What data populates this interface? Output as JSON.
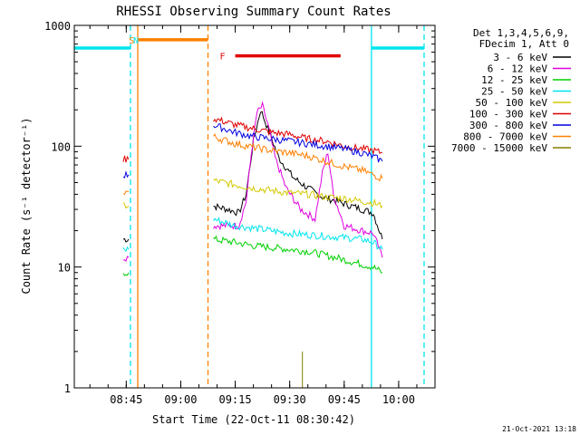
{
  "window": {
    "title": "RHESSI Observing Summary Count Rates",
    "footer_date": "21-Oct-2021 13:18"
  },
  "chart_data": {
    "type": "line",
    "title": "RHESSI Observing Summary Count Rates",
    "xlabel": "Start Time (22-Oct-11 08:30:42)",
    "ylabel": "Count Rate (s⁻¹ detector⁻¹)",
    "y_scale": "log",
    "ylim": [
      1,
      1000
    ],
    "xlim": [
      "08:30:42",
      "10:10:00"
    ],
    "x_ticks": [
      "08:45",
      "09:00",
      "09:15",
      "09:30",
      "09:45",
      "10:00"
    ],
    "y_ticks": [
      "1",
      "10",
      "100",
      "1000"
    ],
    "legend": {
      "placement": "right",
      "header": [
        "Det 1,3,4,5,6,9,",
        "FDecim 1, Att 0"
      ],
      "entries": [
        {
          "label": "3 - 6 keV",
          "color": "#000000"
        },
        {
          "label": "6 - 12 keV",
          "color": "#e000e0"
        },
        {
          "label": "12 - 25 keV",
          "color": "#00d000"
        },
        {
          "label": "25 - 50 keV",
          "color": "#00e5ee"
        },
        {
          "label": "50 - 100 keV",
          "color": "#d4c800"
        },
        {
          "label": "100 - 300 keV",
          "color": "#e00000"
        },
        {
          "label": "300 - 800 keV",
          "color": "#0000e0"
        },
        {
          "label": "800 - 7000 keV",
          "color": "#ff8000"
        },
        {
          "label": "7000 - 15000 keV",
          "color": "#808000"
        }
      ]
    },
    "annotations": [
      {
        "label": "S",
        "time": "08:46:30",
        "color": "#ff8000"
      },
      {
        "label": "N",
        "time": "08:47:40",
        "color": "#00e5ee"
      },
      {
        "label": "F",
        "time": "09:11:30",
        "color": "#e00000"
      }
    ],
    "bars": [
      {
        "name": "night",
        "color": "#00e5ee",
        "y": 650,
        "ranges": [
          [
            "08:30:42",
            "08:46:10"
          ],
          [
            "09:52:30",
            "10:07:00"
          ]
        ]
      },
      {
        "name": "saa",
        "color": "#ff8000",
        "y": 760,
        "ranges": [
          [
            "08:48:10",
            "09:07:30"
          ]
        ]
      },
      {
        "name": "flare",
        "color": "#e00000",
        "y": 560,
        "ranges": [
          [
            "09:15:00",
            "09:44:00"
          ]
        ]
      }
    ],
    "vlines": [
      {
        "time": "08:46:10",
        "color": "#00e5ee",
        "style": "dashed"
      },
      {
        "time": "08:48:10",
        "color": "#ff8000",
        "style": "solid"
      },
      {
        "time": "09:07:30",
        "color": "#ff8000",
        "style": "dashed"
      },
      {
        "time": "09:52:30",
        "color": "#00e5ee",
        "style": "solid"
      },
      {
        "time": "10:07:00",
        "color": "#00e5ee",
        "style": "dashed"
      }
    ],
    "series": [
      {
        "name": "3 - 6 keV",
        "color": "#000000",
        "segments": [
          {
            "t": [
              "08:44:10",
              "08:45:40"
            ],
            "v": [
              17,
              17
            ]
          },
          {
            "t": [
              "09:09:00",
              "09:13:00",
              "09:16:00",
              "09:18:00",
              "09:20:00",
              "09:22:00",
              "09:24:00",
              "09:27:00",
              "09:31:00",
              "09:35:00",
              "09:39:00",
              "09:43:00",
              "09:47:00",
              "09:50:00",
              "09:53:00",
              "09:55:30"
            ],
            "v": [
              32,
              30,
              28,
              40,
              110,
              200,
              140,
              80,
              55,
              45,
              38,
              35,
              32,
              30,
              28,
              17
            ]
          }
        ]
      },
      {
        "name": "6 - 12 keV",
        "color": "#e000e0",
        "segments": [
          {
            "t": [
              "08:44:10",
              "08:45:40"
            ],
            "v": [
              12,
              12
            ]
          },
          {
            "t": [
              "09:09:00",
              "09:13:00",
              "09:16:00",
              "09:18:00",
              "09:19:30",
              "09:21:00",
              "09:22:30",
              "09:24:00",
              "09:26:00",
              "09:29:00",
              "09:33:00",
              "09:37:00",
              "09:39:00",
              "09:40:30",
              "09:42:00",
              "09:45:00",
              "09:50:00",
              "09:53:00",
              "09:55:30"
            ],
            "v": [
              22,
              22,
              22,
              35,
              90,
              190,
              215,
              150,
              80,
              45,
              30,
              25,
              60,
              90,
              40,
              22,
              20,
              19,
              12
            ]
          }
        ]
      },
      {
        "name": "12 - 25 keV",
        "color": "#00d000",
        "segments": [
          {
            "t": [
              "08:44:10",
              "08:45:40"
            ],
            "v": [
              9,
              9
            ]
          },
          {
            "t": [
              "09:09:00",
              "09:15:00",
              "09:20:00",
              "09:25:00",
              "09:30:00",
              "09:35:00",
              "09:40:00",
              "09:45:00",
              "09:50:00",
              "09:53:00",
              "09:55:30"
            ],
            "v": [
              17,
              16,
              15,
              14.5,
              14,
              13.5,
              12.5,
              11.5,
              10.5,
              10,
              9
            ]
          }
        ]
      },
      {
        "name": "25 - 50 keV",
        "color": "#00e5ee",
        "segments": [
          {
            "t": [
              "08:44:10",
              "08:45:40"
            ],
            "v": [
              14,
              14
            ]
          },
          {
            "t": [
              "09:09:00",
              "09:15:00",
              "09:20:00",
              "09:25:00",
              "09:30:00",
              "09:35:00",
              "09:40:00",
              "09:45:00",
              "09:50:00",
              "09:53:00",
              "09:55:30"
            ],
            "v": [
              25,
              22,
              21,
              20,
              19,
              18.5,
              18,
              17.5,
              17,
              16,
              14
            ]
          }
        ]
      },
      {
        "name": "50 - 100 keV",
        "color": "#d4c800",
        "segments": [
          {
            "t": [
              "08:44:10",
              "08:45:40"
            ],
            "v": [
              32,
              32
            ]
          },
          {
            "t": [
              "09:09:00",
              "09:15:00",
              "09:20:00",
              "09:25:00",
              "09:30:00",
              "09:35:00",
              "09:40:00",
              "09:45:00",
              "09:50:00",
              "09:53:00",
              "09:55:30"
            ],
            "v": [
              52,
              48,
              45,
              43,
              41,
              40,
              38,
              37,
              35,
              34,
              32
            ]
          }
        ]
      },
      {
        "name": "100 - 300 keV",
        "color": "#e00000",
        "segments": [
          {
            "t": [
              "08:44:10",
              "08:45:40"
            ],
            "v": [
              78,
              78
            ]
          },
          {
            "t": [
              "09:09:00",
              "09:15:00",
              "09:20:00",
              "09:25:00",
              "09:30:00",
              "09:35:00",
              "09:40:00",
              "09:45:00",
              "09:50:00",
              "09:53:00",
              "09:55:30"
            ],
            "v": [
              170,
              150,
              140,
              130,
              125,
              115,
              110,
              100,
              95,
              92,
              88
            ]
          }
        ]
      },
      {
        "name": "300 - 800 keV",
        "color": "#0000e0",
        "segments": [
          {
            "t": [
              "08:44:10",
              "08:45:40"
            ],
            "v": [
              58,
              58
            ]
          },
          {
            "t": [
              "09:09:00",
              "09:15:00",
              "09:20:00",
              "09:25:00",
              "09:30:00",
              "09:35:00",
              "09:40:00",
              "09:45:00",
              "09:50:00",
              "09:53:00",
              "09:55:30"
            ],
            "v": [
              150,
              130,
              120,
              115,
              110,
              105,
              100,
              95,
              88,
              82,
              75
            ]
          }
        ]
      },
      {
        "name": "800 - 7000 keV",
        "color": "#ff8000",
        "segments": [
          {
            "t": [
              "08:44:10",
              "08:45:40"
            ],
            "v": [
              42,
              42
            ]
          },
          {
            "t": [
              "09:09:00",
              "09:15:00",
              "09:20:00",
              "09:25:00",
              "09:30:00",
              "09:35:00",
              "09:40:00",
              "09:45:00",
              "09:50:00",
              "09:53:00",
              "09:55:30"
            ],
            "v": [
              120,
              105,
              98,
              92,
              88,
              83,
              75,
              68,
              63,
              58,
              54
            ]
          }
        ]
      },
      {
        "name": "7000 - 15000 keV",
        "color": "#808000",
        "segments": [
          {
            "t": [
              "09:33:30",
              "09:33:30"
            ],
            "v": [
              1,
              2
            ]
          }
        ]
      }
    ]
  }
}
